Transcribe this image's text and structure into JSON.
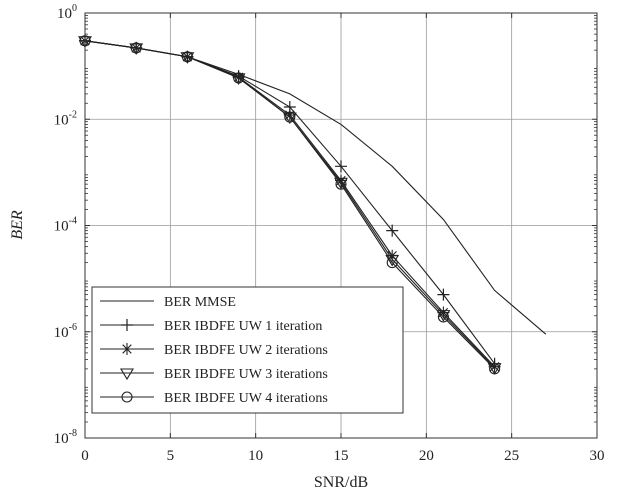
{
  "chart_data": {
    "type": "line",
    "xlabel": "SNR/dB",
    "ylabel": "BER",
    "xlim": [
      0,
      30
    ],
    "ylim": [
      1e-08,
      1
    ],
    "yscale": "log",
    "grid": true,
    "legend_position": "bottom-left",
    "x_ticks": [
      0,
      5,
      10,
      15,
      20,
      25,
      30
    ],
    "x_tick_labels": [
      "0",
      "5",
      "10",
      "15",
      "20",
      "25",
      "30"
    ],
    "y_ticks": [
      {
        "value": 1,
        "base": "10",
        "exp": "0"
      },
      {
        "value": 0.01,
        "base": "10",
        "exp": "-2"
      },
      {
        "value": 0.0001,
        "base": "10",
        "exp": "-4"
      },
      {
        "value": 1e-06,
        "base": "10",
        "exp": "-6"
      },
      {
        "value": 1e-08,
        "base": "10",
        "exp": "-8"
      }
    ],
    "series": [
      {
        "name": "BER MMSE",
        "marker": "none",
        "x": [
          0,
          3,
          6,
          9,
          12,
          15,
          18,
          21,
          24,
          27
        ],
        "y": [
          0.3,
          0.22,
          0.15,
          0.07,
          0.03,
          0.008,
          0.0013,
          0.00013,
          6e-06,
          9e-07
        ]
      },
      {
        "name": "BER IBDFE UW 1 iteration",
        "marker": "plus",
        "x": [
          0,
          3,
          6,
          9,
          12,
          15,
          18,
          21,
          24
        ],
        "y": [
          0.3,
          0.22,
          0.15,
          0.065,
          0.017,
          0.0013,
          8e-05,
          5e-06,
          2.5e-07
        ]
      },
      {
        "name": "BER IBDFE UW 2 iterations",
        "marker": "asterisk",
        "x": [
          0,
          3,
          6,
          9,
          12,
          15,
          18,
          21,
          24
        ],
        "y": [
          0.3,
          0.22,
          0.15,
          0.062,
          0.012,
          0.0007,
          2.7e-05,
          2.3e-06,
          2.2e-07
        ]
      },
      {
        "name": "BER IBDFE UW 3 iterations",
        "marker": "triangle-down",
        "x": [
          0,
          3,
          6,
          9,
          12,
          15,
          18,
          21,
          24
        ],
        "y": [
          0.3,
          0.22,
          0.15,
          0.06,
          0.011,
          0.00065,
          2.3e-05,
          2.1e-06,
          2.1e-07
        ]
      },
      {
        "name": "BER IBDFE UW 4 iterations",
        "marker": "circle",
        "x": [
          0,
          3,
          6,
          9,
          12,
          15,
          18,
          21,
          24
        ],
        "y": [
          0.3,
          0.22,
          0.15,
          0.06,
          0.011,
          0.0006,
          2e-05,
          1.9e-06,
          2e-07
        ]
      }
    ]
  }
}
